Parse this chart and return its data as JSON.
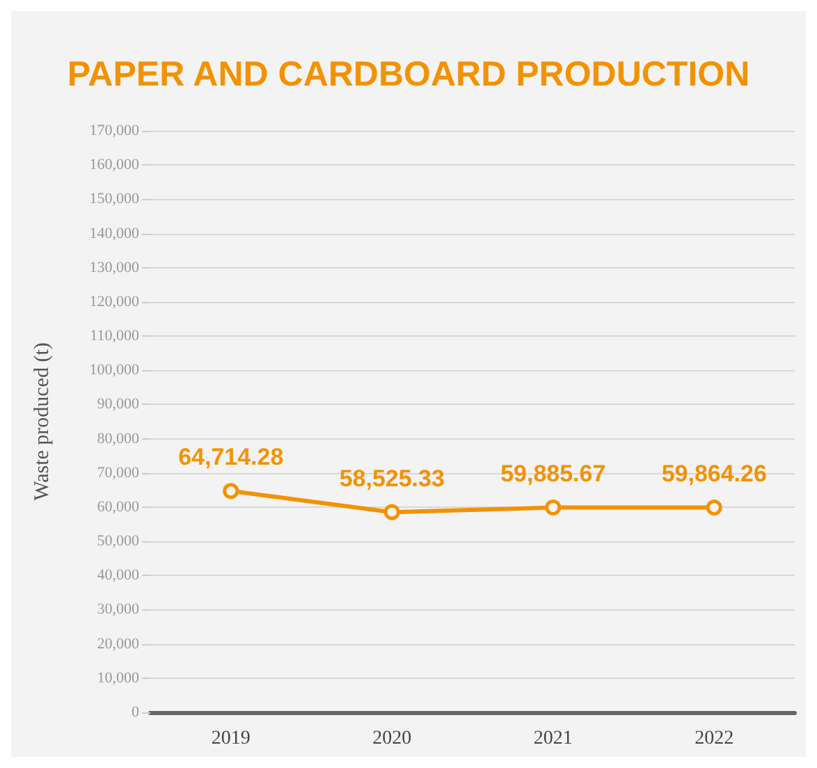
{
  "chart_data": {
    "type": "line",
    "title": "PAPER AND CARDBOARD PRODUCTION",
    "ylabel": "Waste produced (t)",
    "categories": [
      "2019",
      "2020",
      "2021",
      "2022"
    ],
    "series": [
      {
        "color": "#f39200",
        "values": [
          64714.28,
          58525.33,
          59885.67,
          59864.26
        ]
      }
    ],
    "value_labels": [
      "64,714.28",
      "58,525.33",
      "59,885.67",
      "59,864.26"
    ],
    "ylim": [
      0,
      170000
    ],
    "yticks": [
      0,
      {
        "value": 10000,
        "label": "10,000"
      },
      {
        "value": 20000,
        "label": "20,000"
      },
      {
        "value": 30000,
        "label": "30,000"
      },
      {
        "value": 40000,
        "label": "40,000"
      },
      {
        "value": 50000,
        "label": "50,000"
      },
      {
        "value": 60000,
        "label": "60,000"
      },
      {
        "value": 70000,
        "label": "70,000"
      },
      {
        "value": 80000,
        "label": "80,000"
      },
      {
        "value": 90000,
        "label": "90,000"
      },
      {
        "value": 100000,
        "label": "100,000"
      },
      {
        "value": 110000,
        "label": "110,000"
      },
      {
        "value": 120000,
        "label": "120,000"
      },
      {
        "value": 130000,
        "label": "130,000"
      },
      {
        "value": 140000,
        "label": "140,000"
      },
      {
        "value": 150000,
        "label": "150,000"
      },
      {
        "value": 160000,
        "label": "160,000"
      },
      {
        "value": 170000,
        "label": "170,000"
      }
    ],
    "grid": "y",
    "marker": "circle",
    "line_style": "solid"
  }
}
